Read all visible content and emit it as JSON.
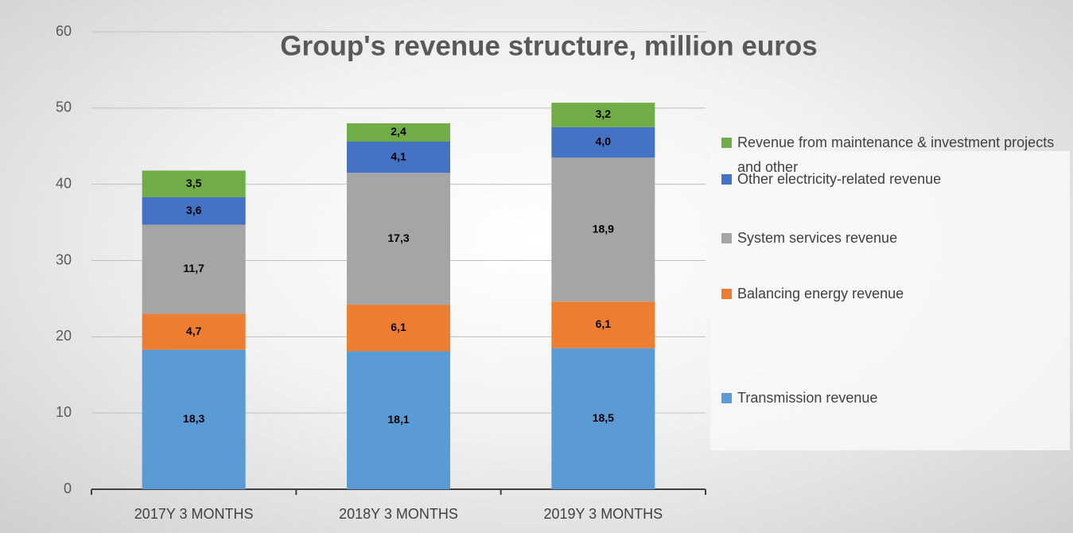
{
  "chart_data": {
    "type": "stacked_bar",
    "title": "Group's revenue structure, million euros",
    "categories": [
      "2017Y 3 MONTHS",
      "2018Y 3 MONTHS",
      "2019Y 3 MONTHS"
    ],
    "series": [
      {
        "name": "Transmission revenue",
        "color": "#5b9bd5",
        "values": [
          18.3,
          18.1,
          18.5
        ],
        "value_labels": [
          "18,3",
          "18,1",
          "18,5"
        ]
      },
      {
        "name": "Balancing energy revenue",
        "color": "#ed7d31",
        "values": [
          4.7,
          6.1,
          6.1
        ],
        "value_labels": [
          "4,7",
          "6,1",
          "6,1"
        ]
      },
      {
        "name": "System services revenue",
        "color": "#a5a5a5",
        "values": [
          11.7,
          17.3,
          18.9
        ],
        "value_labels": [
          "11,7",
          "17,3",
          "18,9"
        ]
      },
      {
        "name": "Other electricity-related revenue",
        "color": "#4472c4",
        "values": [
          3.6,
          4.1,
          4.0
        ],
        "value_labels": [
          "3,6",
          "4,1",
          "4,0"
        ]
      },
      {
        "name": "Revenue from maintenance & investment projects and other",
        "color": "#70ad47",
        "values": [
          3.5,
          2.4,
          3.2
        ],
        "value_labels": [
          "3,5",
          "2,4",
          "3,2"
        ]
      }
    ],
    "ylim": [
      0,
      60
    ],
    "yticks": [
      0,
      10,
      20,
      30,
      40,
      50,
      60
    ],
    "grid": true,
    "legend": "right"
  }
}
